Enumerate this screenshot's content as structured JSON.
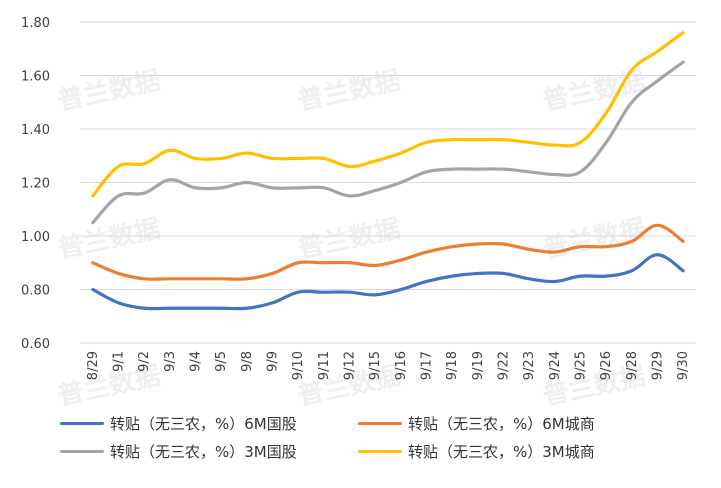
{
  "chart_data": {
    "type": "line",
    "categories": [
      "8/29",
      "9/1",
      "9/2",
      "9/3",
      "9/4",
      "9/5",
      "9/8",
      "9/9",
      "9/10",
      "9/11",
      "9/12",
      "9/15",
      "9/16",
      "9/17",
      "9/18",
      "9/19",
      "9/22",
      "9/23",
      "9/24",
      "9/25",
      "9/26",
      "9/28",
      "9/29",
      "9/30"
    ],
    "ylim": [
      0.6,
      1.8
    ],
    "yticks": [
      "0.60",
      "0.80",
      "1.00",
      "1.20",
      "1.40",
      "1.60",
      "1.80"
    ],
    "grid": true,
    "legend_position": "bottom",
    "series": [
      {
        "name": "转贴（无三农，%）6M国股",
        "color": "#4472C4",
        "values": [
          0.8,
          0.75,
          0.73,
          0.73,
          0.73,
          0.73,
          0.73,
          0.75,
          0.79,
          0.79,
          0.79,
          0.78,
          0.8,
          0.83,
          0.85,
          0.86,
          0.86,
          0.84,
          0.83,
          0.85,
          0.85,
          0.87,
          0.93,
          0.87
        ]
      },
      {
        "name": "转贴（无三农，%）6M城商",
        "color": "#ED7D31",
        "values": [
          0.9,
          0.86,
          0.84,
          0.84,
          0.84,
          0.84,
          0.84,
          0.86,
          0.9,
          0.9,
          0.9,
          0.89,
          0.91,
          0.94,
          0.96,
          0.97,
          0.97,
          0.95,
          0.94,
          0.96,
          0.96,
          0.98,
          1.04,
          0.98
        ]
      },
      {
        "name": "转贴（无三农，%）3M国股",
        "color": "#A5A5A5",
        "values": [
          1.05,
          1.15,
          1.16,
          1.21,
          1.18,
          1.18,
          1.2,
          1.18,
          1.18,
          1.18,
          1.15,
          1.17,
          1.2,
          1.24,
          1.25,
          1.25,
          1.25,
          1.24,
          1.23,
          1.24,
          1.35,
          1.5,
          1.58,
          1.65
        ]
      },
      {
        "name": "转贴（无三农，%）3M城商",
        "color": "#FFC000",
        "values": [
          1.15,
          1.26,
          1.27,
          1.32,
          1.29,
          1.29,
          1.31,
          1.29,
          1.29,
          1.29,
          1.26,
          1.28,
          1.31,
          1.35,
          1.36,
          1.36,
          1.36,
          1.35,
          1.34,
          1.35,
          1.46,
          1.62,
          1.69,
          1.76
        ]
      }
    ]
  },
  "watermark": "普兰数据"
}
